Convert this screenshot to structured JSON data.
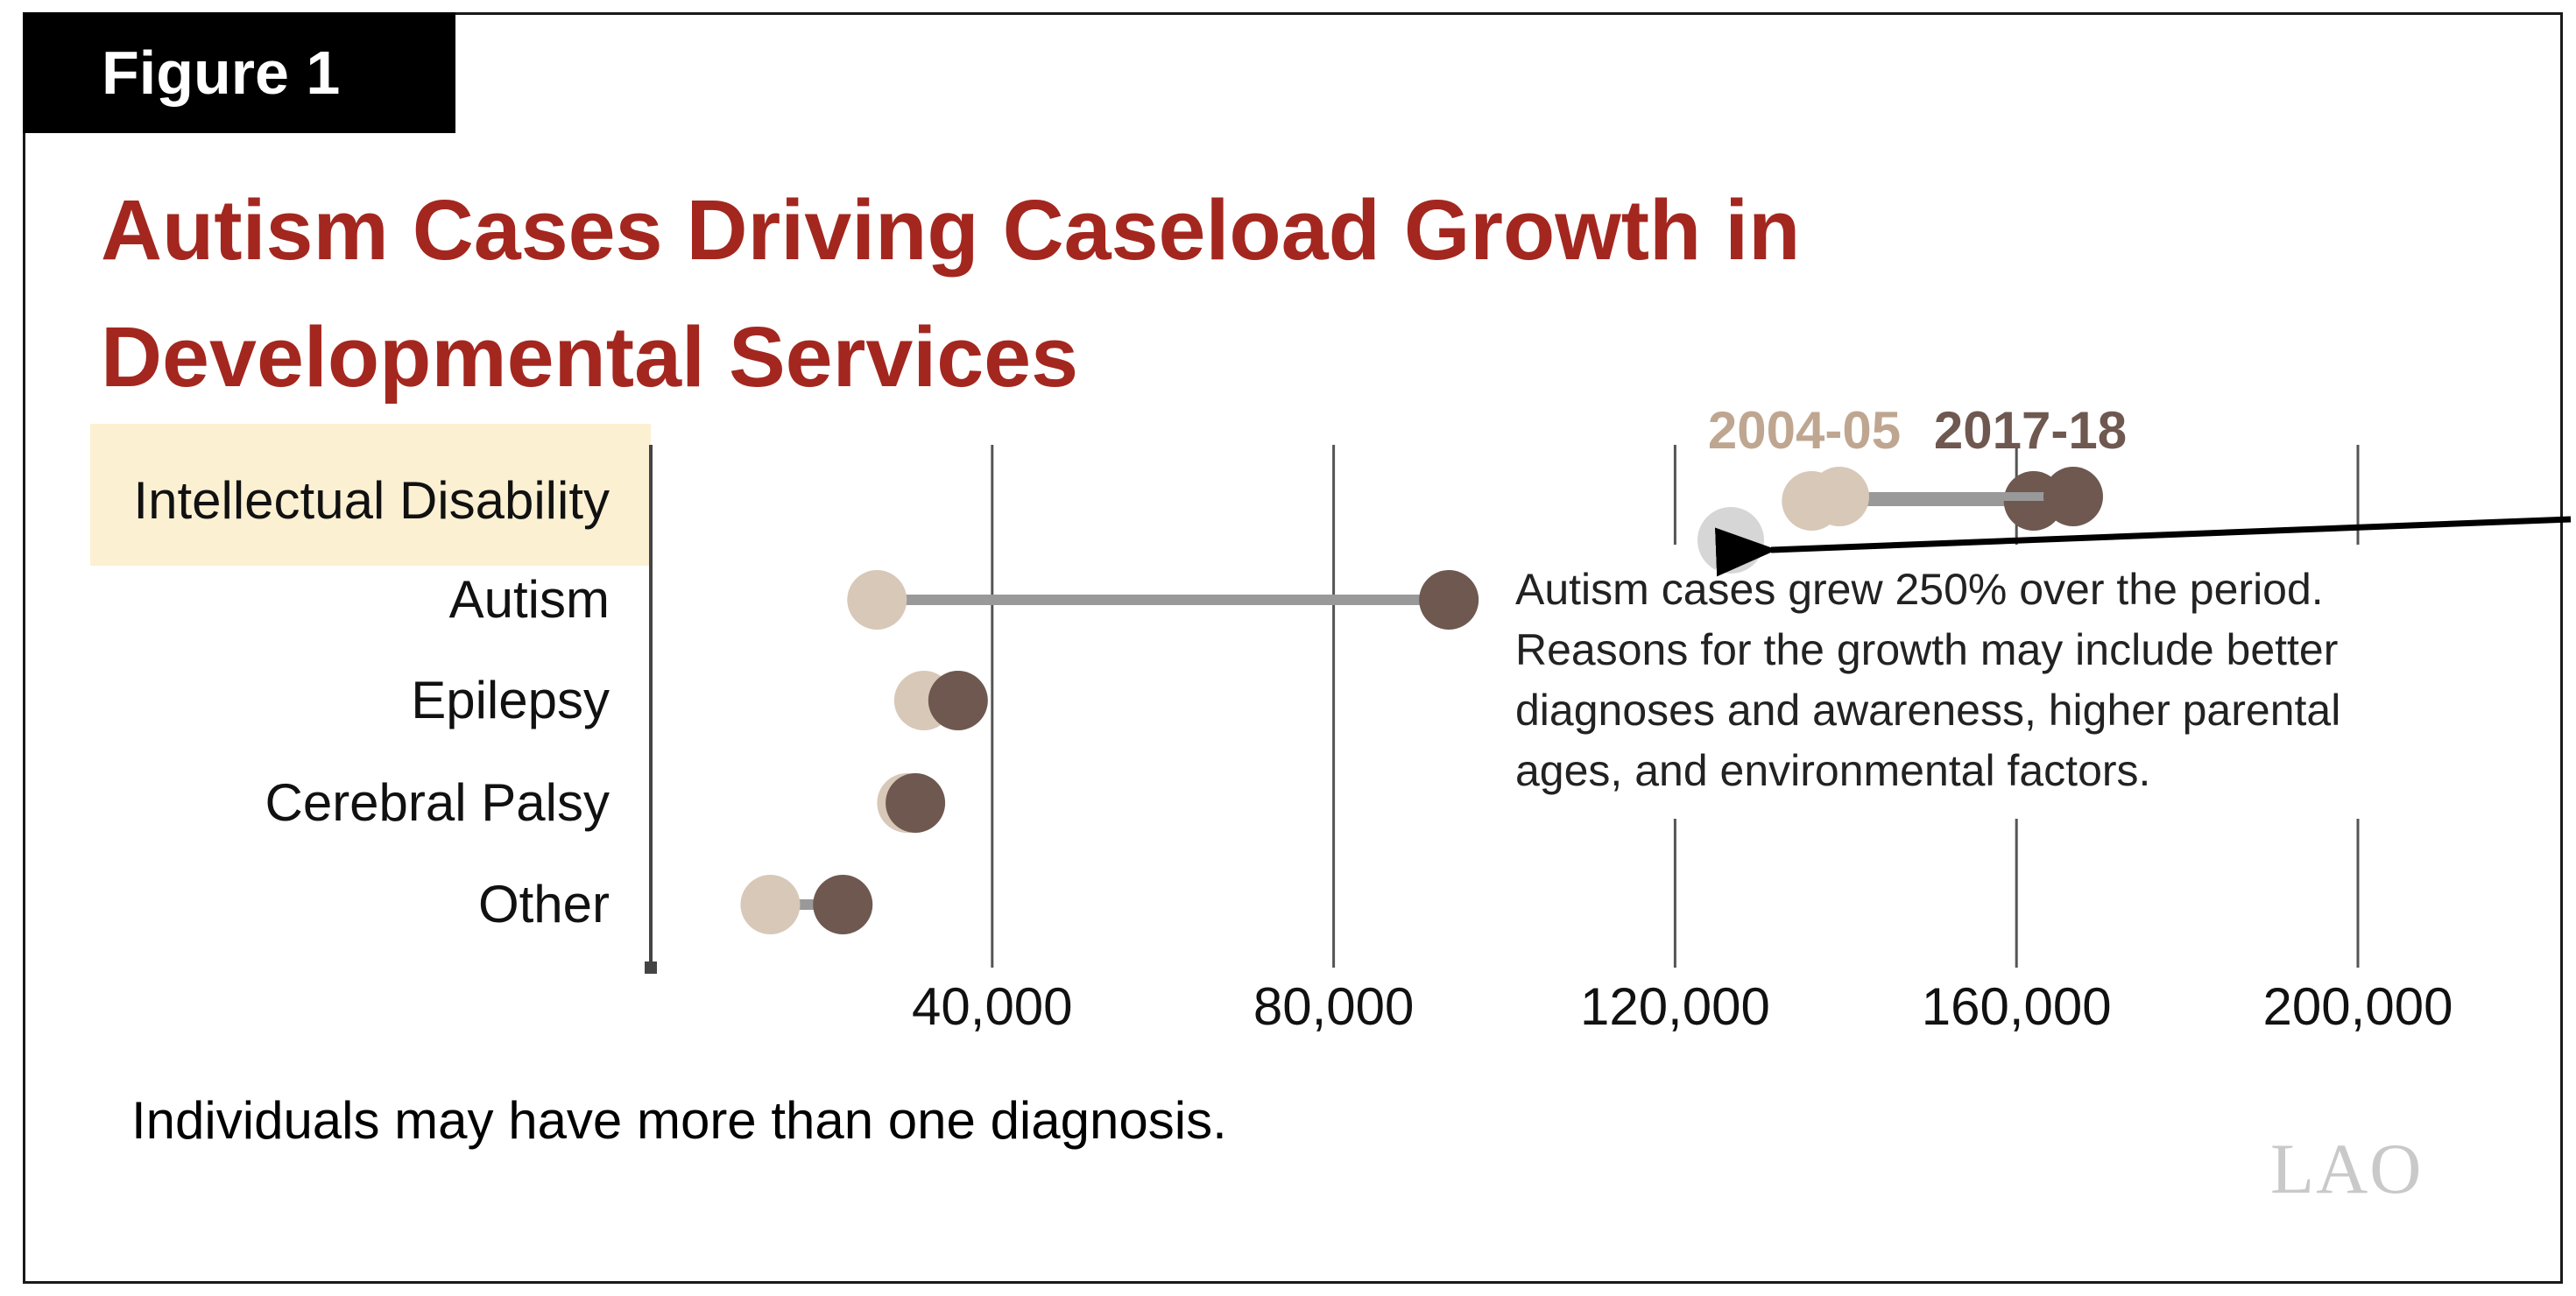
{
  "figure": {
    "label": "Figure 1",
    "title": "Autism Cases Driving Caseload Growth in Developmental Services",
    "footnote": "Individuals may have more than one diagnosis.",
    "logo": "LAO"
  },
  "chart_data": {
    "type": "dumbbell",
    "title": "Autism Cases Driving Caseload Growth in Developmental Services",
    "categories": [
      "Intellectual Disability",
      "Autism",
      "Epilepsy",
      "Cerebral Palsy",
      "Other"
    ],
    "highlighted_category": "Intellectual Disability",
    "series": [
      {
        "name": "2004-05",
        "color": "#d8c8b8",
        "values": [
          136000,
          26500,
          32000,
          30000,
          14000
        ]
      },
      {
        "name": "2017-18",
        "color": "#6e5850",
        "values": [
          162000,
          93500,
          36000,
          31000,
          22500
        ]
      }
    ],
    "xaxis": {
      "min": 0,
      "max": 200000,
      "ticks": [
        40000,
        80000,
        120000,
        160000,
        200000
      ],
      "tick_labels": [
        "40,000",
        "80,000",
        "120,000",
        "160,000",
        "200,000"
      ]
    },
    "annotation": {
      "lines": [
        "Autism cases grew 250% over the period.",
        "Reasons for the growth may include better",
        "diagnoses and awareness, higher parental",
        "ages, and environmental factors."
      ]
    },
    "colors": {
      "title": "#a3271f",
      "highlight": "#fbf0d2",
      "connector": "#999999",
      "gridline": "#555555"
    },
    "grid": true,
    "legend": "top"
  }
}
